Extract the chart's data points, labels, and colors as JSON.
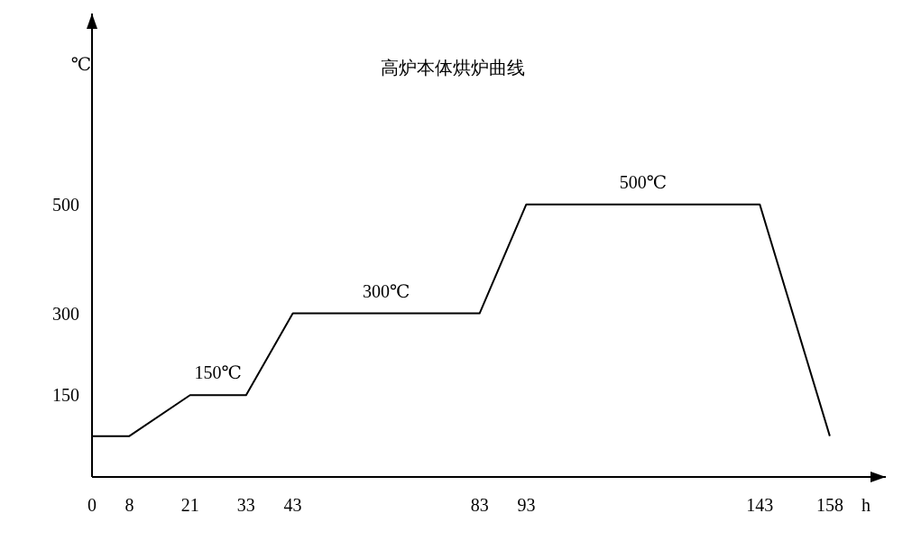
{
  "chart_data": {
    "type": "line",
    "title": "高炉本体烘炉曲线",
    "xlabel": "h",
    "ylabel": "℃",
    "x": [
      0,
      8,
      21,
      33,
      43,
      83,
      93,
      143,
      158
    ],
    "series": [
      {
        "color": "#000000",
        "values": [
          75,
          75,
          150,
          150,
          300,
          300,
          500,
          500,
          75
        ]
      }
    ],
    "xlim": [
      0,
      170
    ],
    "xticks": [
      0,
      8,
      21,
      33,
      43,
      83,
      93,
      143,
      158
    ],
    "ylim": [
      0,
      850
    ],
    "yticks": [
      150,
      300,
      500
    ],
    "grid": false,
    "marker": "none",
    "line_style": "solid",
    "annotations": [
      {
        "text": "150℃",
        "x": 27,
        "y": 150
      },
      {
        "text": "300℃",
        "x": 63,
        "y": 300
      },
      {
        "text": "500℃",
        "x": 118,
        "y": 500
      }
    ]
  }
}
